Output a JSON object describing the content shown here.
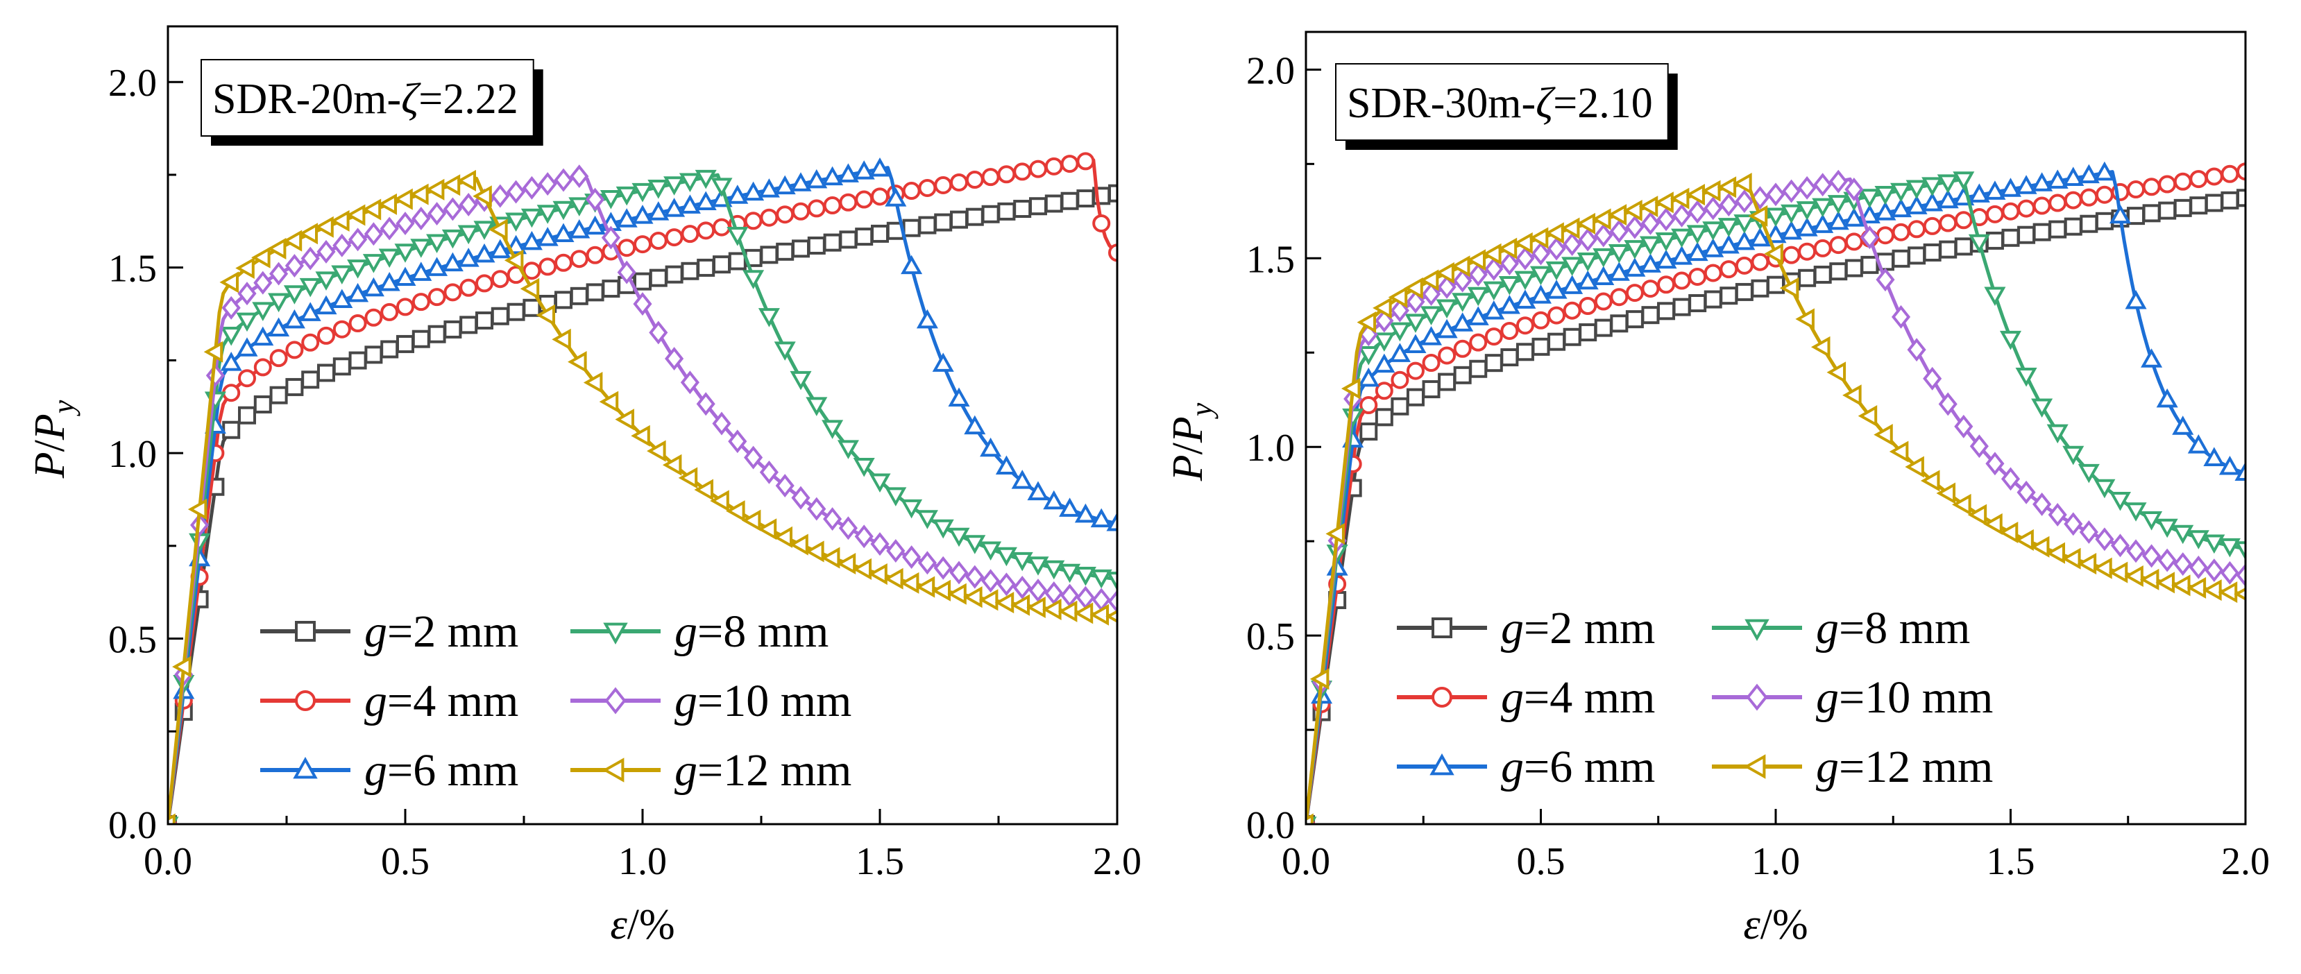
{
  "colors": {
    "g2": "#474747",
    "g4": "#e53935",
    "g6": "#1c6fd6",
    "g8": "#3aa872",
    "g10": "#a86ad8",
    "g12": "#c9a000"
  },
  "chart_data": [
    {
      "type": "line",
      "title": "SDR-20m-ζ=2.22",
      "title_parts": {
        "prefix": "SDR-20m-",
        "symbol": "ζ",
        "suffix": "=2.22"
      },
      "xlabel": "ε/%",
      "ylabel": "P/Py",
      "xlim": [
        0,
        2.0
      ],
      "ylim": [
        0,
        2.15
      ],
      "xticks": [
        "0.0",
        "0.5",
        "1.0",
        "1.5",
        "2.0"
      ],
      "yticks": [
        "0.0",
        "0.5",
        "1.0",
        "1.5",
        "2.0"
      ],
      "legend_position": "bottom-left",
      "series": [
        {
          "name": "g=2 mm",
          "gap": "=2 mm",
          "color_key": "g2",
          "marker": "square",
          "peak_x": 2.0,
          "peak_y": 1.7,
          "drop": false,
          "yield_y": 1.0
        },
        {
          "name": "g=4 mm",
          "gap": "=4 mm",
          "color_key": "g4",
          "marker": "circle",
          "peak_x": 1.95,
          "peak_y": 1.79,
          "drop": true,
          "end_y": 1.54,
          "yield_y": 1.1
        },
        {
          "name": "g=6 mm",
          "gap": "=6 mm",
          "color_key": "g6",
          "marker": "triangle-up",
          "peak_x": 1.52,
          "peak_y": 1.77,
          "drop": true,
          "end_y": 0.81,
          "yield_y": 1.18
        },
        {
          "name": "g=8 mm",
          "gap": "=8 mm",
          "color_key": "g8",
          "marker": "triangle-down",
          "peak_x": 1.16,
          "peak_y": 1.75,
          "drop": true,
          "end_y": 0.66,
          "yield_y": 1.26
        },
        {
          "name": "g=10 mm",
          "gap": "=10 mm",
          "color_key": "g10",
          "marker": "diamond",
          "peak_x": 0.88,
          "peak_y": 1.75,
          "drop": true,
          "end_y": 0.6,
          "yield_y": 1.33
        },
        {
          "name": "g=12 mm",
          "gap": "=12 mm",
          "color_key": "g12",
          "marker": "triangle-left",
          "peak_x": 0.65,
          "peak_y": 1.74,
          "drop": true,
          "end_y": 0.56,
          "yield_y": 1.4
        }
      ]
    },
    {
      "type": "line",
      "title": "SDR-30m-ζ=2.10",
      "title_parts": {
        "prefix": "SDR-30m-",
        "symbol": "ζ",
        "suffix": "=2.10"
      },
      "xlabel": "ε/%",
      "ylabel": "P/Py",
      "xlim": [
        0,
        2.0
      ],
      "ylim": [
        0,
        2.1
      ],
      "xticks": [
        "0.0",
        "0.5",
        "1.0",
        "1.5",
        "2.0"
      ],
      "yticks": [
        "0.0",
        "0.5",
        "1.0",
        "1.5",
        "2.0"
      ],
      "legend_position": "bottom-left",
      "series": [
        {
          "name": "g=2 mm",
          "gap": "=2 mm",
          "color_key": "g2",
          "marker": "square",
          "peak_x": 2.0,
          "peak_y": 1.66,
          "drop": false,
          "yield_y": 0.98
        },
        {
          "name": "g=4 mm",
          "gap": "=4 mm",
          "color_key": "g4",
          "marker": "circle",
          "peak_x": 2.0,
          "peak_y": 1.73,
          "drop": false,
          "yield_y": 1.05
        },
        {
          "name": "g=6 mm",
          "gap": "=6 mm",
          "color_key": "g6",
          "marker": "triangle-up",
          "peak_x": 1.72,
          "peak_y": 1.73,
          "drop": true,
          "end_y": 0.93,
          "yield_y": 1.12
        },
        {
          "name": "g=8 mm",
          "gap": "=8 mm",
          "color_key": "g8",
          "marker": "triangle-down",
          "peak_x": 1.4,
          "peak_y": 1.71,
          "drop": true,
          "end_y": 0.73,
          "yield_y": 1.19
        },
        {
          "name": "g=10 mm",
          "gap": "=10 mm",
          "color_key": "g10",
          "marker": "diamond",
          "peak_x": 1.16,
          "peak_y": 1.71,
          "drop": true,
          "end_y": 0.66,
          "yield_y": 1.24
        },
        {
          "name": "g=12 mm",
          "gap": "=12 mm",
          "color_key": "g12",
          "marker": "triangle-left",
          "peak_x": 0.94,
          "peak_y": 1.7,
          "drop": true,
          "end_y": 0.61,
          "yield_y": 1.27
        }
      ]
    }
  ]
}
